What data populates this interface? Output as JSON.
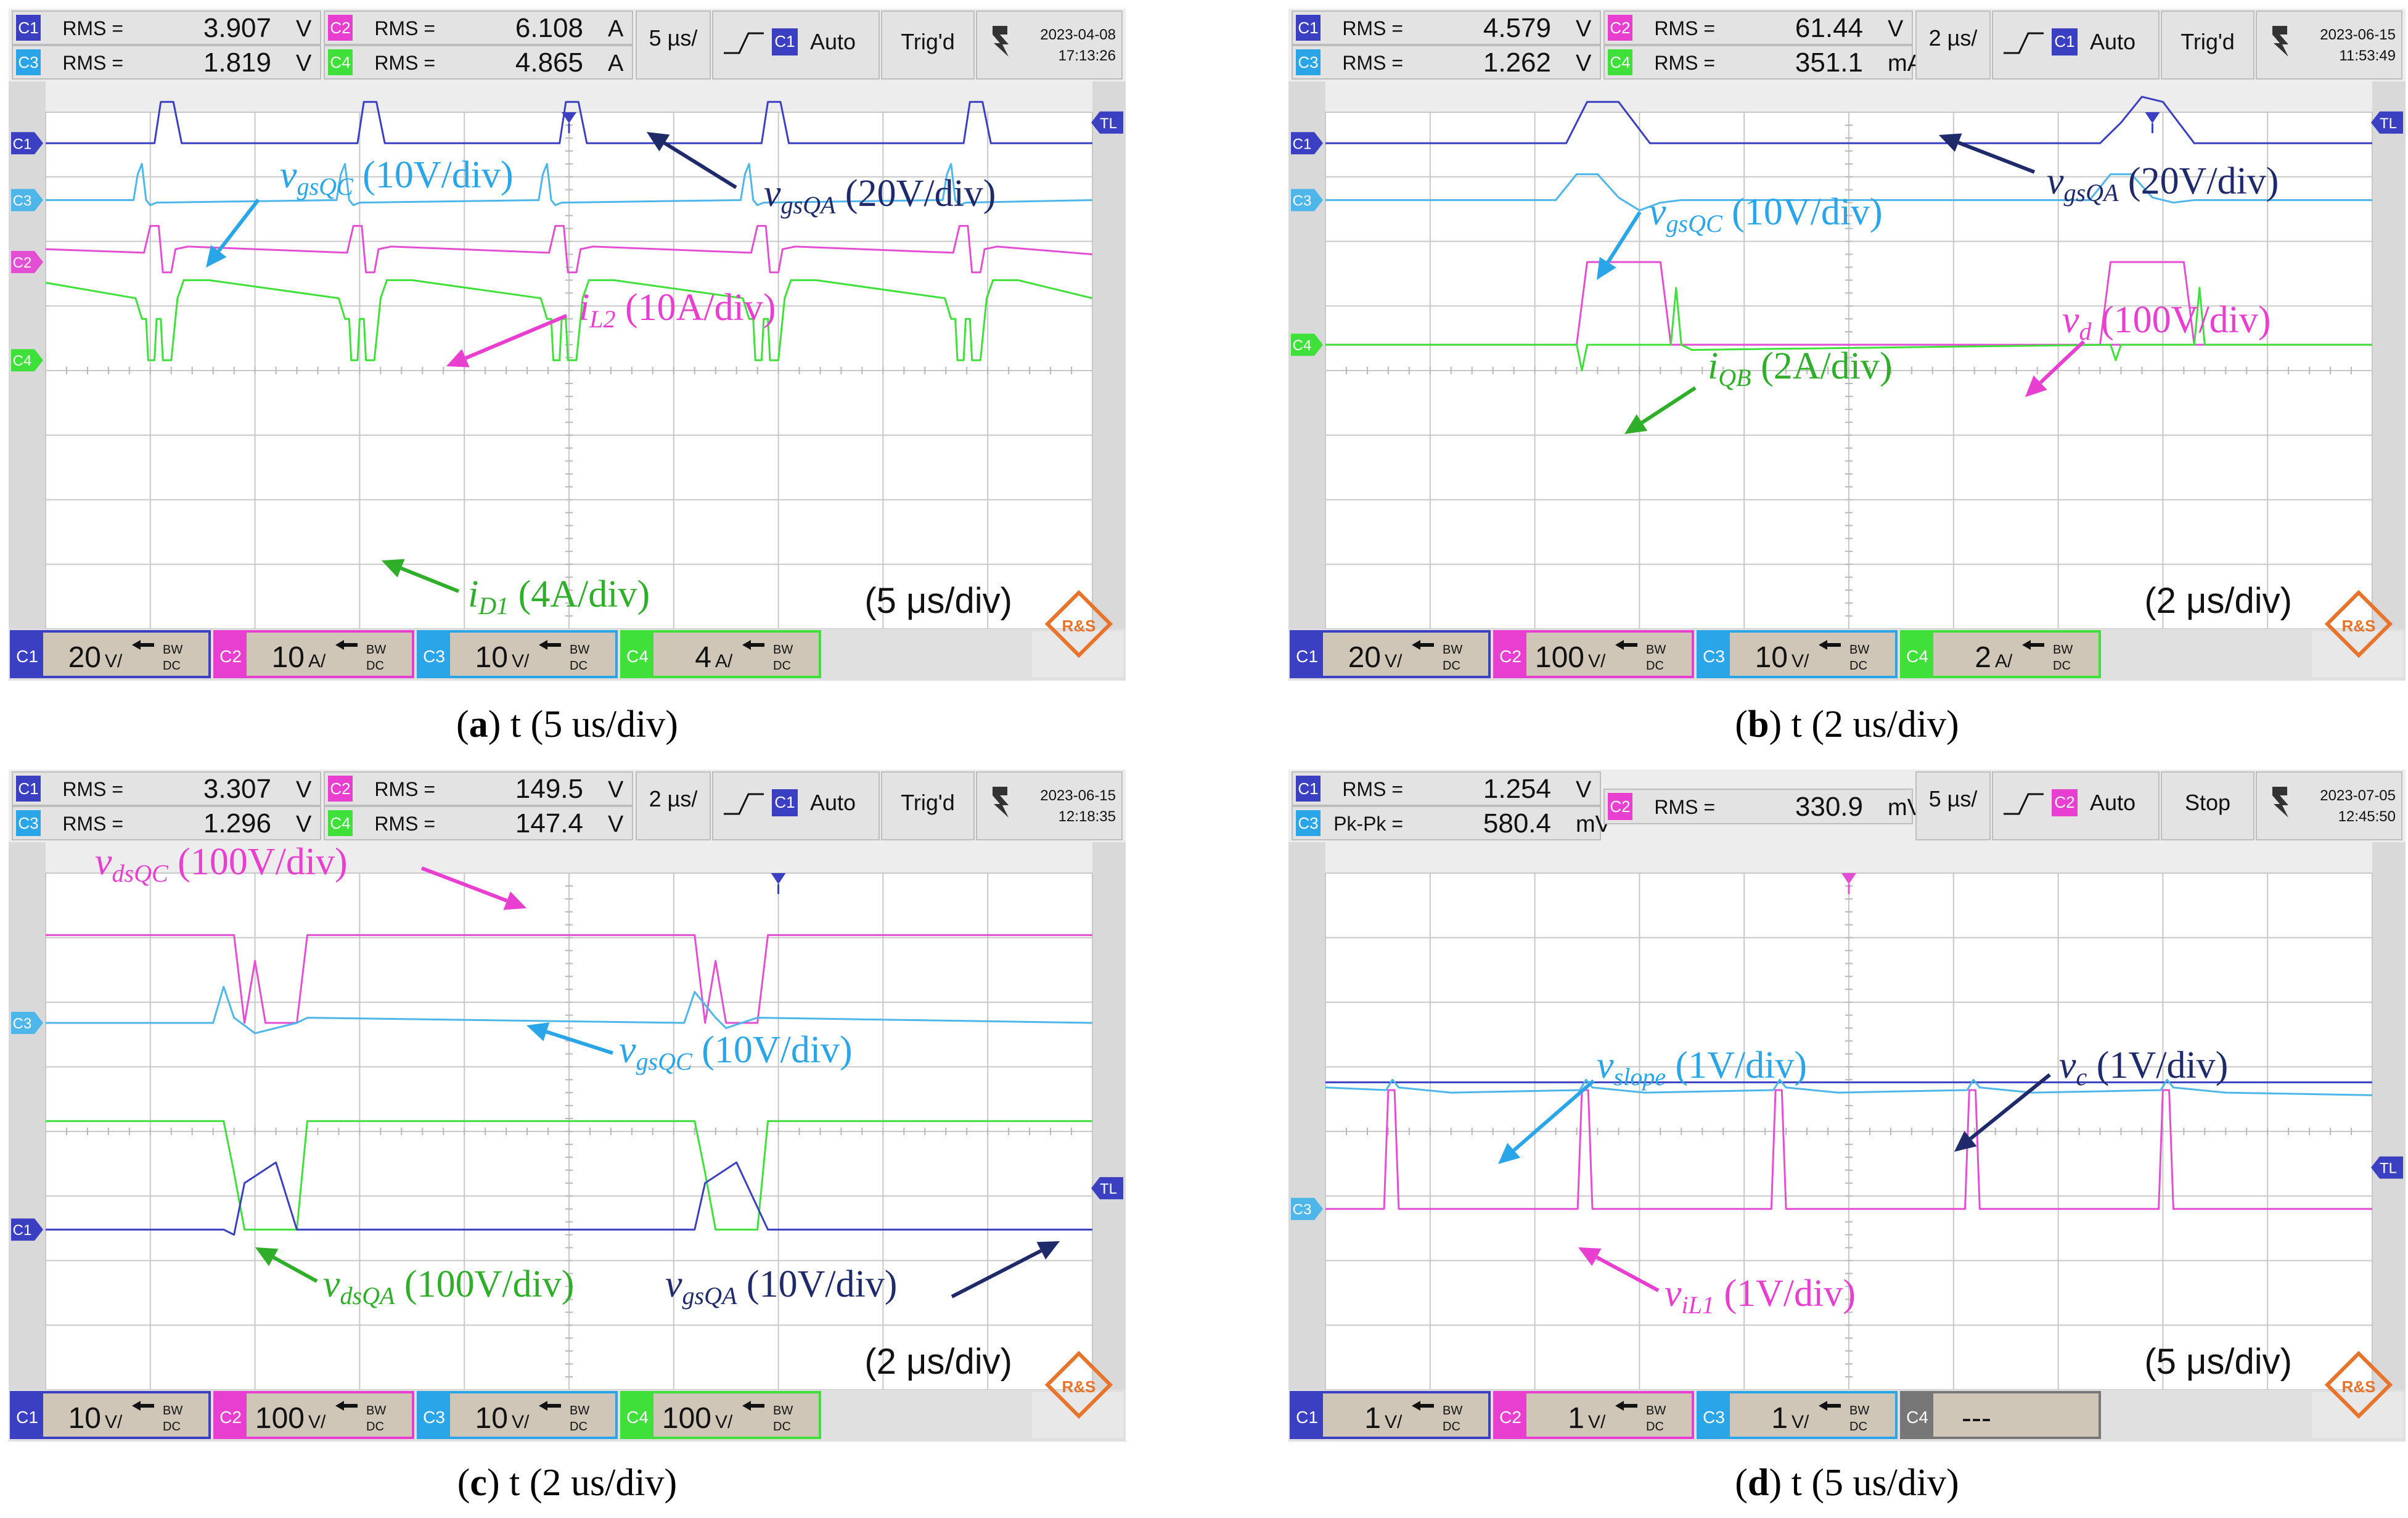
{
  "panels": [
    {
      "id": "a",
      "meas": [
        {
          "ch": "C1",
          "color": "#3b3fc2",
          "type": "RMS",
          "value": "3.907",
          "unit": "V"
        },
        {
          "ch": "C3",
          "color": "#2aa6e8",
          "type": "RMS",
          "value": "1.819",
          "unit": "V"
        },
        {
          "ch": "C2",
          "color": "#e83fd1",
          "type": "RMS",
          "value": "6.108",
          "unit": "A"
        },
        {
          "ch": "C4",
          "color": "#3fe03a",
          "type": "RMS",
          "value": "4.865",
          "unit": "A"
        }
      ],
      "timebase": "5 µs/",
      "trig_ch": "C1",
      "trig_color": "#3b3fc2",
      "trig_mode": "Auto",
      "status": "Trig'd",
      "date": "2023-04-08",
      "time": "17:13:26",
      "scales": [
        {
          "ch": "C1",
          "color": "#3b3fc2",
          "value": "20",
          "unit": "V/"
        },
        {
          "ch": "C2",
          "color": "#e83fd1",
          "value": "10",
          "unit": "A/"
        },
        {
          "ch": "C3",
          "color": "#2aa6e8",
          "value": "10",
          "unit": "V/"
        },
        {
          "ch": "C4",
          "color": "#3fe03a",
          "value": "4",
          "unit": "A/"
        }
      ],
      "timescale_text": "(5 μs/div)",
      "caption": {
        "letter": "a",
        "text": "t (5 us/div)"
      },
      "labels": [
        {
          "text": "vgsQC (10V/div)",
          "color": "#2aa6e8"
        },
        {
          "text": "vgsQA (20V/div)",
          "color": "#1f2a6b"
        },
        {
          "text": "iL2 (10A/div)",
          "color": "#e83fd1"
        },
        {
          "text": "iD1 (4A/div)",
          "color": "#2fae2a"
        }
      ]
    },
    {
      "id": "b",
      "meas": [
        {
          "ch": "C1",
          "color": "#3b3fc2",
          "type": "RMS",
          "value": "4.579",
          "unit": "V"
        },
        {
          "ch": "C3",
          "color": "#2aa6e8",
          "type": "RMS",
          "value": "1.262",
          "unit": "V"
        },
        {
          "ch": "C2",
          "color": "#e83fd1",
          "type": "RMS",
          "value": "61.44",
          "unit": "V"
        },
        {
          "ch": "C4",
          "color": "#3fe03a",
          "type": "RMS",
          "value": "351.1",
          "unit": "mA"
        }
      ],
      "timebase": "2 µs/",
      "trig_ch": "C1",
      "trig_color": "#3b3fc2",
      "trig_mode": "Auto",
      "status": "Trig'd",
      "date": "2023-06-15",
      "time": "11:53:49",
      "scales": [
        {
          "ch": "C1",
          "color": "#3b3fc2",
          "value": "20",
          "unit": "V/"
        },
        {
          "ch": "C2",
          "color": "#e83fd1",
          "value": "100",
          "unit": "V/"
        },
        {
          "ch": "C3",
          "color": "#2aa6e8",
          "value": "10",
          "unit": "V/"
        },
        {
          "ch": "C4",
          "color": "#3fe03a",
          "value": "2",
          "unit": "A/"
        }
      ],
      "timescale_text": "(2 μs/div)",
      "caption": {
        "letter": "b",
        "text": "t (2 us/div)"
      },
      "labels": [
        {
          "text": "vgsQC (10V/div)",
          "color": "#2aa6e8"
        },
        {
          "text": "vgsQA (20V/div)",
          "color": "#1f2a6b"
        },
        {
          "text": "vd (100V/div)",
          "color": "#e83fd1"
        },
        {
          "text": "iQB (2A/div)",
          "color": "#2fae2a"
        }
      ]
    },
    {
      "id": "c",
      "meas": [
        {
          "ch": "C1",
          "color": "#3b3fc2",
          "type": "RMS",
          "value": "3.307",
          "unit": "V"
        },
        {
          "ch": "C3",
          "color": "#2aa6e8",
          "type": "RMS",
          "value": "1.296",
          "unit": "V"
        },
        {
          "ch": "C2",
          "color": "#e83fd1",
          "type": "RMS",
          "value": "149.5",
          "unit": "V"
        },
        {
          "ch": "C4",
          "color": "#3fe03a",
          "type": "RMS",
          "value": "147.4",
          "unit": "V"
        }
      ],
      "timebase": "2 µs/",
      "trig_ch": "C1",
      "trig_color": "#3b3fc2",
      "trig_mode": "Auto",
      "status": "Trig'd",
      "date": "2023-06-15",
      "time": "12:18:35",
      "scales": [
        {
          "ch": "C1",
          "color": "#3b3fc2",
          "value": "10",
          "unit": "V/"
        },
        {
          "ch": "C2",
          "color": "#e83fd1",
          "value": "100",
          "unit": "V/"
        },
        {
          "ch": "C3",
          "color": "#2aa6e8",
          "value": "10",
          "unit": "V/"
        },
        {
          "ch": "C4",
          "color": "#3fe03a",
          "value": "100",
          "unit": "V/"
        }
      ],
      "timescale_text": "(2 μs/div)",
      "caption": {
        "letter": "c",
        "text": "t (2 us/div)"
      },
      "labels": [
        {
          "text": "vdsQC (100V/div)",
          "color": "#e83fd1"
        },
        {
          "text": "vgsQC (10V/div)",
          "color": "#2aa6e8"
        },
        {
          "text": "vdsQA (100V/div)",
          "color": "#2fae2a"
        },
        {
          "text": "vgsQA (10V/div)",
          "color": "#1f2a6b"
        }
      ]
    },
    {
      "id": "d",
      "meas": [
        {
          "ch": "C1",
          "color": "#3b3fc2",
          "type": "RMS",
          "value": "1.254",
          "unit": "V"
        },
        {
          "ch": "C3",
          "color": "#2aa6e8",
          "type": "Pk-Pk",
          "value": "580.4",
          "unit": "mV"
        },
        {
          "ch": "C2",
          "color": "#e83fd1",
          "type": "RMS",
          "value": "330.9",
          "unit": "mV"
        }
      ],
      "timebase": "5 µs/",
      "trig_ch": "C2",
      "trig_color": "#e83fd1",
      "trig_mode": "Auto",
      "status": "Stop",
      "date": "2023-07-05",
      "time": "12:45:50",
      "scales": [
        {
          "ch": "C1",
          "color": "#3b3fc2",
          "value": "1",
          "unit": "V/"
        },
        {
          "ch": "C2",
          "color": "#e83fd1",
          "value": "1",
          "unit": "V/"
        },
        {
          "ch": "C3",
          "color": "#2aa6e8",
          "value": "1",
          "unit": "V/"
        },
        {
          "ch": "C4",
          "color": "#777777",
          "value": "---",
          "unit": ""
        }
      ],
      "timescale_text": "(5 μs/div)",
      "caption": {
        "letter": "d",
        "text": "t (5 us/div)"
      },
      "labels": [
        {
          "text": "vslope (1V/div)",
          "color": "#2aa6e8"
        },
        {
          "text": "vc (1V/div)",
          "color": "#1f2a6b"
        },
        {
          "text": "viL1 (1V/div)",
          "color": "#e83fd1"
        }
      ]
    }
  ]
}
